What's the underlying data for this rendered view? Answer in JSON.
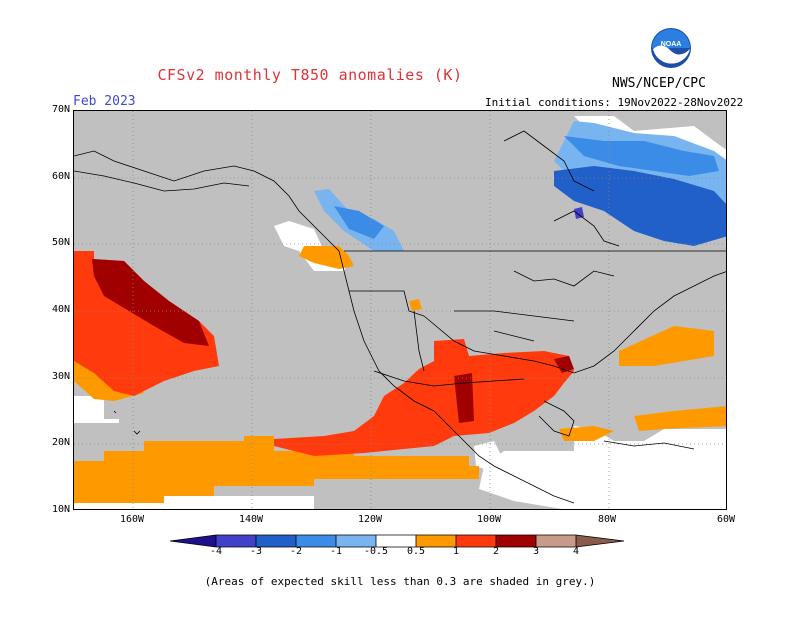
{
  "title": "CFSv2 monthly T850 anomalies (K)",
  "period": "Feb 2023",
  "initial_conditions": "Initial conditions: 19Nov2022-28Nov2022",
  "agency": "NWS/NCEP/CPC",
  "logo_text": "NOAA",
  "footnote": "(Areas of expected skill less than 0.3 are shaded in grey.)",
  "map": {
    "lat_labels": [
      "70N",
      "60N",
      "50N",
      "40N",
      "30N",
      "20N",
      "10N"
    ],
    "lon_labels": [
      "160W",
      "140W",
      "120W",
      "100W",
      "80W",
      "60W"
    ],
    "lat_range": [
      10,
      70
    ],
    "lon_range": [
      -170,
      -60
    ],
    "gridlines": "dotted",
    "low_skill_color": "#c0c0c0"
  },
  "colorbar": {
    "labels": [
      "-4",
      "-3",
      "-2",
      "-1",
      "-0.5",
      "0.5",
      "1",
      "2",
      "3",
      "4"
    ],
    "colors": [
      "#1e0f8c",
      "#4040c8",
      "#2060c8",
      "#3a8ce6",
      "#78b4f0",
      "#ffffff",
      "#ff9900",
      "#ff3a0c",
      "#a00000",
      "#c89a8a",
      "#8a5a4a"
    ]
  }
}
